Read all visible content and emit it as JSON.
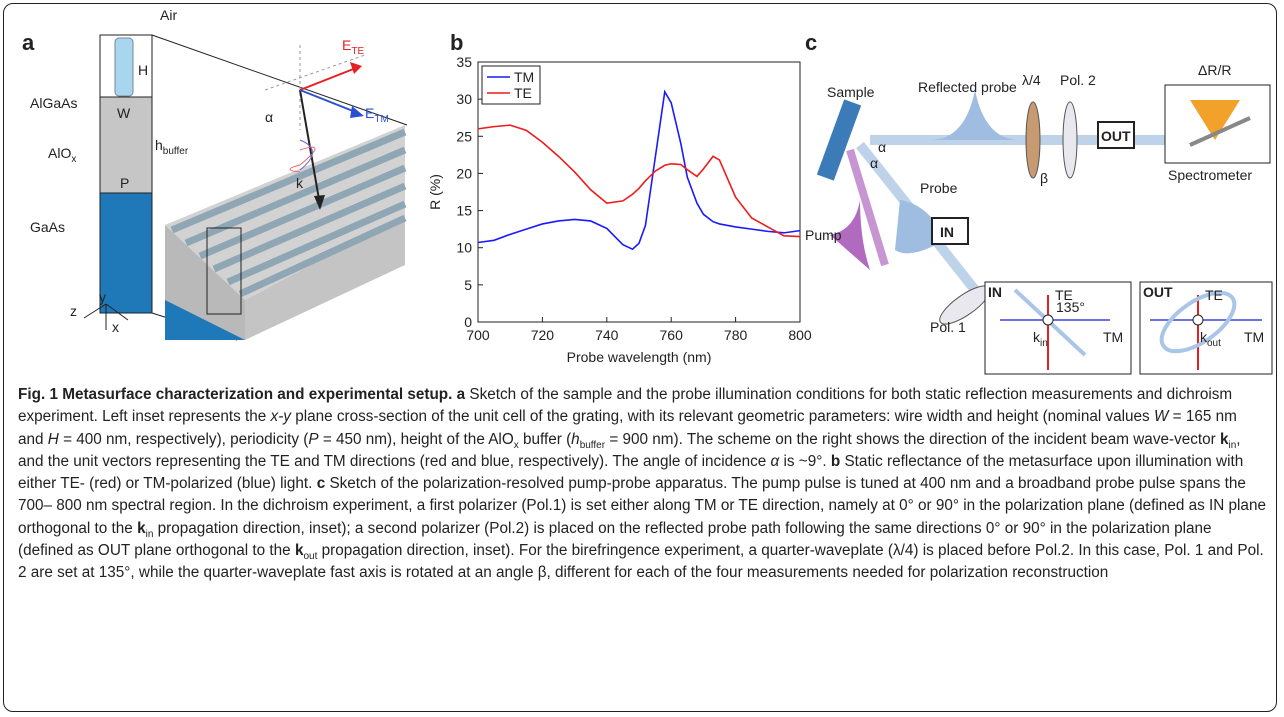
{
  "panel_a": {
    "label": "a",
    "air": "Air",
    "algaas": "AlGaAs",
    "h": "H",
    "w": "W",
    "alox": [
      "AlO",
      "x"
    ],
    "h_buffer": [
      "h",
      "buffer"
    ],
    "p": "P",
    "gaas": "GaAs",
    "axes": [
      "y",
      "z",
      "x"
    ],
    "e_te": [
      "E",
      "TE"
    ],
    "e_tm": [
      "E",
      "TM"
    ],
    "alpha": "α",
    "k": "k"
  },
  "chart_data": {
    "type": "line",
    "label": "b",
    "xlabel": "Probe wavelength (nm)",
    "ylabel": "R (%)",
    "x": [
      700,
      705,
      710,
      715,
      720,
      725,
      730,
      735,
      740,
      745,
      748,
      750,
      752,
      755,
      758,
      760,
      763,
      765,
      768,
      770,
      773,
      775,
      780,
      785,
      790,
      795,
      800
    ],
    "series": [
      {
        "name": "TM",
        "color": "#1a1aff",
        "values": [
          10.7,
          11.0,
          11.8,
          12.5,
          13.2,
          13.6,
          13.8,
          13.6,
          12.6,
          10.4,
          9.8,
          10.6,
          13.0,
          22.0,
          31.0,
          29.5,
          24.0,
          19.5,
          16.0,
          14.5,
          13.5,
          13.2,
          12.8,
          12.5,
          12.2,
          12.0,
          12.3
        ]
      },
      {
        "name": "TE",
        "color": "#ee1c1c",
        "values": [
          26.0,
          26.3,
          26.5,
          25.8,
          24.2,
          22.3,
          20.2,
          17.8,
          16.0,
          16.3,
          17.2,
          18.0,
          19.0,
          20.3,
          21.1,
          21.3,
          21.2,
          20.5,
          19.6,
          20.6,
          22.3,
          21.8,
          16.8,
          14.0,
          12.8,
          11.6,
          11.5
        ]
      }
    ],
    "xlim": [
      700,
      800
    ],
    "ylim": [
      0,
      35
    ],
    "xticks": [
      700,
      720,
      740,
      760,
      780,
      800
    ],
    "yticks": [
      0,
      5,
      10,
      15,
      20,
      25,
      30,
      35
    ],
    "legend": "upper left"
  },
  "panel_c": {
    "label": "c",
    "sample": "Sample",
    "reflected_probe": "Reflected probe",
    "qwp": "λ/4",
    "pol2": "Pol. 2",
    "dr": "ΔR/R",
    "out": "OUT",
    "spectrometer": "Spectrometer",
    "alpha1": "α",
    "alpha2": "α",
    "beta": "β",
    "probe": "Probe",
    "pump": "Pump",
    "in": "IN",
    "pol1": "Pol. 1",
    "inset_in": {
      "title": "IN",
      "te": "TE",
      "angle": "135°",
      "k": [
        "k",
        "in"
      ],
      "tm": "TM"
    },
    "inset_out": {
      "title": "OUT",
      "te": "TE",
      "k": [
        "k",
        "out"
      ],
      "tm": "TM"
    }
  },
  "caption": {
    "runs": [
      "Fig. 1 Metasurface characterization and experimental setup.",
      "a",
      " Sketch of the sample and the probe illumination conditions for both static reflection measurements and dichroism experiment. Left inset represents the ",
      "x-y",
      " plane cross-section of the unit cell of the grating, with its relevant geometric parameters: wire width and height (nominal values ",
      "W",
      " = 165 nm and ",
      "H",
      " = 400 nm, respectively), periodicity (",
      "P",
      " = 450 nm), height of the AlO",
      "x",
      " buffer (",
      "h",
      "buffer",
      " = 900 nm). The scheme on the right shows the direction of the incident beam wave-vector ",
      "k",
      "in",
      ", and the unit vectors representing the TE and TM directions (red and blue, respectively). The angle of incidence ",
      "α",
      " is ~9°. ",
      "b",
      " Static reflectance of the metasurface upon illumination with either TE- (red) or TM-polarized (blue) light. ",
      "c",
      " Sketch of the polarization-resolved pump-probe apparatus. The pump pulse is tuned at 400 nm and a broadband probe pulse spans the 700– 800 nm spectral region. In the dichroism experiment, a first polarizer (Pol.1) is set either along TM or TE direction, namely at 0° or 90° in the polarization plane (defined as IN plane orthogonal to the ",
      "k",
      "in",
      " propagation direction, inset); a second polarizer (Pol.2) is placed on the reflected probe path following the same directions 0° or 90° in the polarization plane (defined as OUT plane orthogonal to the ",
      "k",
      "out",
      " propagation direction, inset). For the birefringence experiment, a quarter-waveplate (λ/4) is placed before Pol.2. In this case, Pol. 1 and Pol. 2 are set at 135°, while the quarter-waveplate fast axis is rotated at an angle β, different for each of the four measurements needed for polarization reconstruction"
    ]
  }
}
